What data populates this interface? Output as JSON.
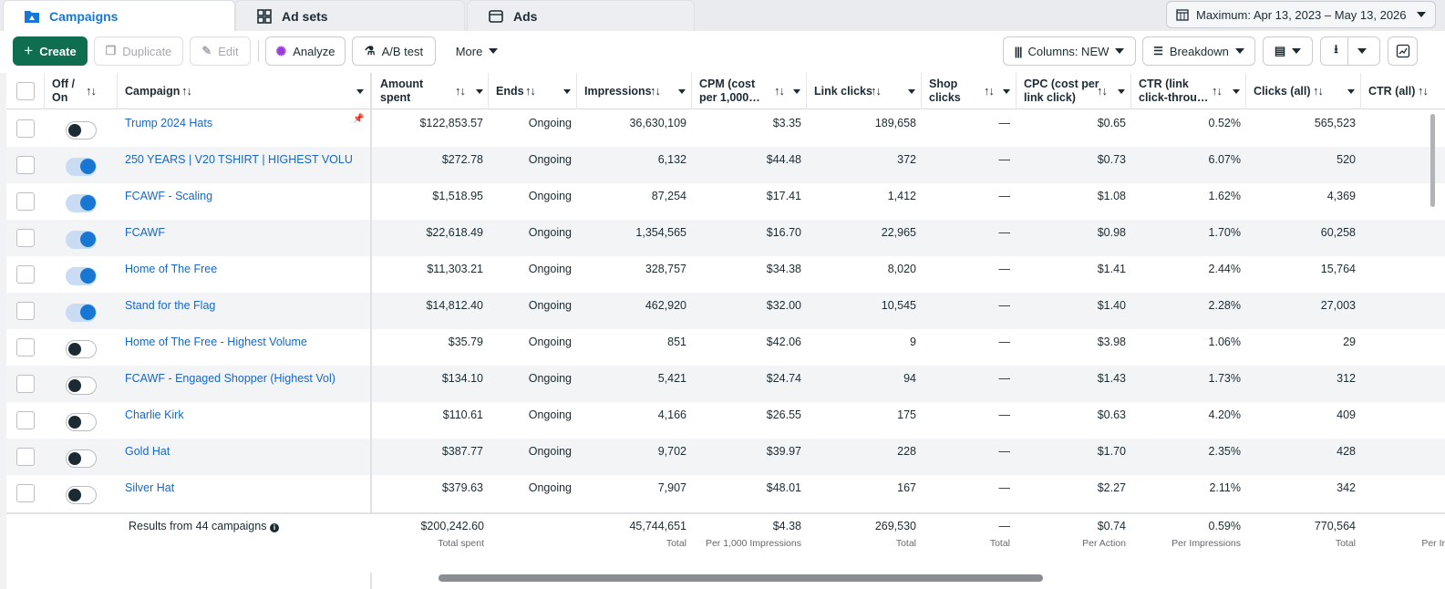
{
  "tabs": [
    {
      "label": "Campaigns",
      "icon": "folder-icon"
    },
    {
      "label": "Ad sets",
      "icon": "grid-icon"
    },
    {
      "label": "Ads",
      "icon": "ad-icon"
    }
  ],
  "date_range": "Maximum: Apr 13, 2023 – May 13, 2026",
  "toolbar": {
    "create": "Create",
    "duplicate": "Duplicate",
    "edit": "Edit",
    "analyze": "Analyze",
    "ab_test": "A/B test",
    "more": "More",
    "columns": "Columns: NEW",
    "breakdown": "Breakdown"
  },
  "columns": {
    "off_on": "Off /\nOn",
    "campaign": "Campaign",
    "amount": "Amount\nspent",
    "ends": "Ends",
    "impressions": "Impressions",
    "cpm": "CPM (cost\nper 1,000…",
    "link_clicks": "Link clicks",
    "shop_clicks": "Shop\nclicks",
    "cpc": "CPC (cost per\nlink click)",
    "ctr_link": "CTR (link\nclick-throu…",
    "clicks_all": "Clicks (all)",
    "ctr_all": "CTR (all)"
  },
  "rows": [
    {
      "on": false,
      "name": "Trump 2024 Hats",
      "pinned": true,
      "amount": "$122,853.57",
      "ends": "Ongoing",
      "impressions": "36,630,109",
      "cpm": "$3.35",
      "link_clicks": "189,658",
      "shop_clicks": "—",
      "cpc": "$0.65",
      "ctr_link": "0.52%",
      "clicks_all": "565,523"
    },
    {
      "on": true,
      "name": "250 YEARS | V20 TSHIRT | HIGHEST VOLU…",
      "pinned": false,
      "amount": "$272.78",
      "ends": "Ongoing",
      "impressions": "6,132",
      "cpm": "$44.48",
      "link_clicks": "372",
      "shop_clicks": "—",
      "cpc": "$0.73",
      "ctr_link": "6.07%",
      "clicks_all": "520"
    },
    {
      "on": true,
      "name": "FCAWF - Scaling",
      "pinned": false,
      "amount": "$1,518.95",
      "ends": "Ongoing",
      "impressions": "87,254",
      "cpm": "$17.41",
      "link_clicks": "1,412",
      "shop_clicks": "—",
      "cpc": "$1.08",
      "ctr_link": "1.62%",
      "clicks_all": "4,369"
    },
    {
      "on": true,
      "name": "FCAWF",
      "pinned": false,
      "amount": "$22,618.49",
      "ends": "Ongoing",
      "impressions": "1,354,565",
      "cpm": "$16.70",
      "link_clicks": "22,965",
      "shop_clicks": "—",
      "cpc": "$0.98",
      "ctr_link": "1.70%",
      "clicks_all": "60,258"
    },
    {
      "on": true,
      "name": "Home of The Free",
      "pinned": false,
      "amount": "$11,303.21",
      "ends": "Ongoing",
      "impressions": "328,757",
      "cpm": "$34.38",
      "link_clicks": "8,020",
      "shop_clicks": "—",
      "cpc": "$1.41",
      "ctr_link": "2.44%",
      "clicks_all": "15,764"
    },
    {
      "on": true,
      "name": "Stand for the Flag",
      "pinned": false,
      "amount": "$14,812.40",
      "ends": "Ongoing",
      "impressions": "462,920",
      "cpm": "$32.00",
      "link_clicks": "10,545",
      "shop_clicks": "—",
      "cpc": "$1.40",
      "ctr_link": "2.28%",
      "clicks_all": "27,003"
    },
    {
      "on": false,
      "name": "Home of The Free - Highest Volume",
      "pinned": false,
      "amount": "$35.79",
      "ends": "Ongoing",
      "impressions": "851",
      "cpm": "$42.06",
      "link_clicks": "9",
      "shop_clicks": "—",
      "cpc": "$3.98",
      "ctr_link": "1.06%",
      "clicks_all": "29"
    },
    {
      "on": false,
      "name": "FCAWF - Engaged Shopper (Highest Vol)",
      "pinned": false,
      "amount": "$134.10",
      "ends": "Ongoing",
      "impressions": "5,421",
      "cpm": "$24.74",
      "link_clicks": "94",
      "shop_clicks": "—",
      "cpc": "$1.43",
      "ctr_link": "1.73%",
      "clicks_all": "312"
    },
    {
      "on": false,
      "name": "Charlie Kirk",
      "pinned": false,
      "amount": "$110.61",
      "ends": "Ongoing",
      "impressions": "4,166",
      "cpm": "$26.55",
      "link_clicks": "175",
      "shop_clicks": "—",
      "cpc": "$0.63",
      "ctr_link": "4.20%",
      "clicks_all": "409"
    },
    {
      "on": false,
      "name": "Gold Hat",
      "pinned": false,
      "amount": "$387.77",
      "ends": "Ongoing",
      "impressions": "9,702",
      "cpm": "$39.97",
      "link_clicks": "228",
      "shop_clicks": "—",
      "cpc": "$1.70",
      "ctr_link": "2.35%",
      "clicks_all": "428"
    },
    {
      "on": false,
      "name": "Silver Hat",
      "pinned": false,
      "amount": "$379.63",
      "ends": "Ongoing",
      "impressions": "7,907",
      "cpm": "$48.01",
      "link_clicks": "167",
      "shop_clicks": "—",
      "cpc": "$2.27",
      "ctr_link": "2.11%",
      "clicks_all": "342"
    }
  ],
  "totals": {
    "label": "Results from 44 campaigns",
    "amount": "$200,242.60",
    "amount_sub": "Total spent",
    "impressions": "45,744,651",
    "impressions_sub": "Total",
    "cpm": "$4.38",
    "cpm_sub": "Per 1,000 Impressions",
    "link_clicks": "269,530",
    "link_clicks_sub": "Total",
    "shop_clicks": "—",
    "shop_clicks_sub": "Total",
    "cpc": "$0.74",
    "cpc_sub": "Per Action",
    "ctr_link": "0.59%",
    "ctr_link_sub": "Per Impressions",
    "clicks_all": "770,564",
    "clicks_all_sub": "Total",
    "ctr_all_sub": "Per Ir"
  },
  "colors": {
    "accent": "#1877d2",
    "create": "#0f6e4f",
    "link": "#1a66c4"
  }
}
